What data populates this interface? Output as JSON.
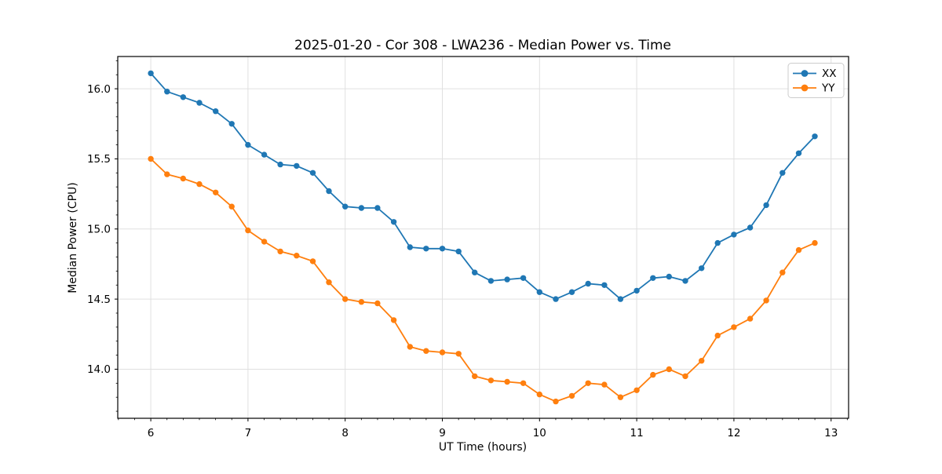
{
  "chart_data": {
    "type": "line",
    "title": "2025-01-20 - Cor 308 - LWA236 - Median Power vs. Time",
    "xlabel": "UT Time (hours)",
    "ylabel": "Median Power (CPU)",
    "legend_position": "upper right",
    "grid": true,
    "marker": "o",
    "xlim": [
      5.66,
      13.18
    ],
    "ylim": [
      13.65,
      16.23
    ],
    "xticks": [
      6,
      7,
      8,
      9,
      10,
      11,
      12,
      13
    ],
    "yticks": [
      14.0,
      14.5,
      15.0,
      15.5,
      16.0
    ],
    "x": [
      6.0,
      6.167,
      6.333,
      6.5,
      6.667,
      6.833,
      7.0,
      7.167,
      7.333,
      7.5,
      7.667,
      7.833,
      8.0,
      8.167,
      8.333,
      8.5,
      8.667,
      8.833,
      9.0,
      9.167,
      9.333,
      9.5,
      9.667,
      9.833,
      10.0,
      10.167,
      10.333,
      10.5,
      10.667,
      10.833,
      11.0,
      11.167,
      11.333,
      11.5,
      11.667,
      11.833,
      12.0,
      12.167,
      12.333,
      12.5,
      12.667,
      12.833
    ],
    "series": [
      {
        "name": "XX",
        "color": "#1f77b4",
        "values": [
          16.11,
          15.98,
          15.94,
          15.9,
          15.84,
          15.75,
          15.6,
          15.53,
          15.46,
          15.45,
          15.4,
          15.27,
          15.16,
          15.15,
          15.15,
          15.05,
          14.87,
          14.86,
          14.86,
          14.84,
          14.69,
          14.63,
          14.64,
          14.65,
          14.55,
          14.5,
          14.55,
          14.61,
          14.6,
          14.5,
          14.56,
          14.65,
          14.66,
          14.63,
          14.72,
          14.9,
          14.96,
          15.01,
          15.17,
          15.4,
          15.54,
          15.66
        ]
      },
      {
        "name": "YY",
        "color": "#ff7f0e",
        "values": [
          15.5,
          15.39,
          15.36,
          15.32,
          15.26,
          15.16,
          14.99,
          14.91,
          14.84,
          14.81,
          14.77,
          14.62,
          14.5,
          14.48,
          14.47,
          14.35,
          14.16,
          14.13,
          14.12,
          14.11,
          13.95,
          13.92,
          13.91,
          13.9,
          13.82,
          13.77,
          13.81,
          13.9,
          13.89,
          13.8,
          13.85,
          13.96,
          14.0,
          13.95,
          14.06,
          14.24,
          14.3,
          14.36,
          14.49,
          14.69,
          14.85,
          14.9
        ]
      }
    ],
    "style": {
      "grid_color": "#e0e0e0",
      "spine_color": "#000000",
      "background": "#ffffff"
    }
  }
}
